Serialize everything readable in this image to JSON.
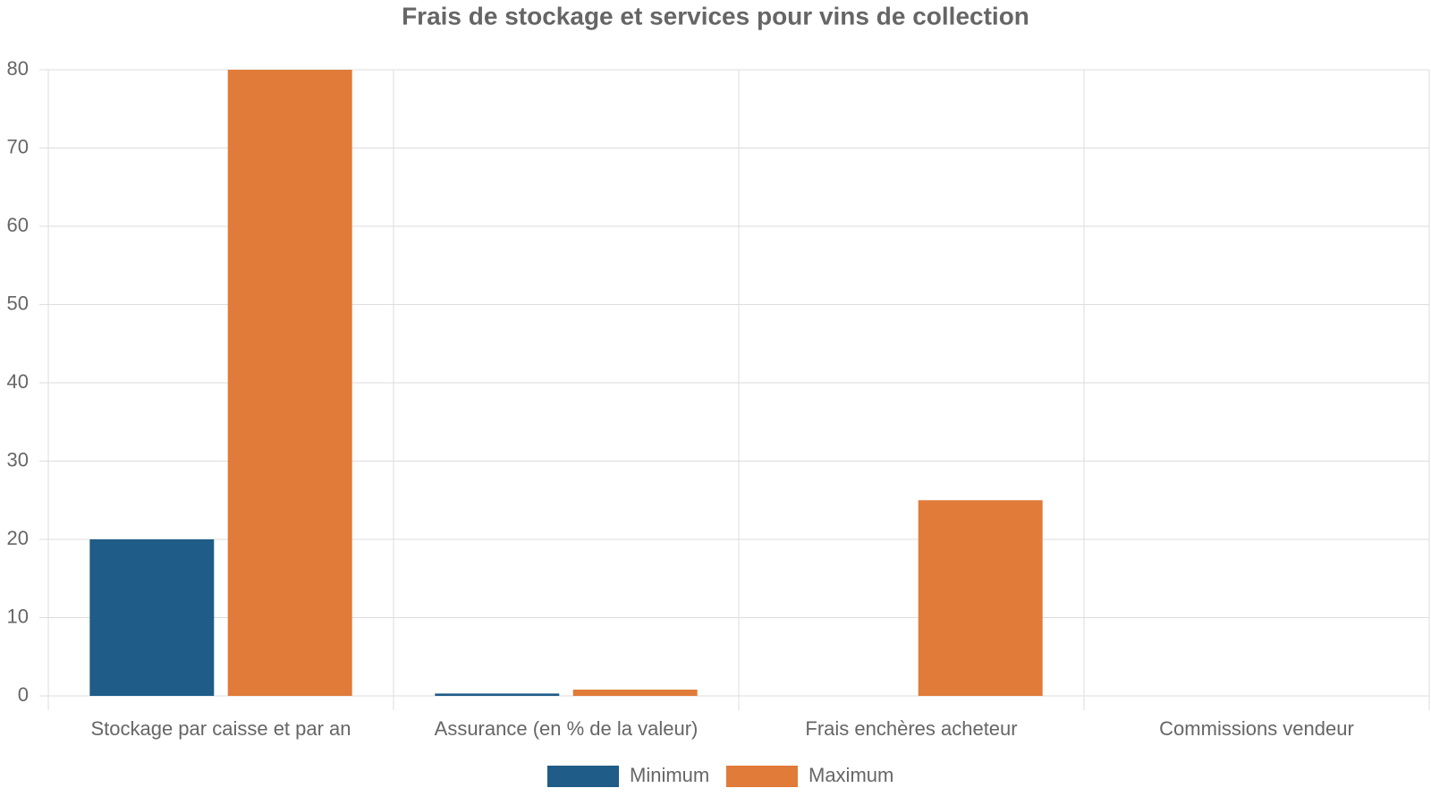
{
  "chart_data": {
    "type": "bar",
    "title": "Frais de stockage et services pour vins de collection",
    "categories": [
      "Stockage par caisse et par an",
      "Assurance (en % de la valeur)",
      "Frais enchères acheteur",
      "Commissions vendeur"
    ],
    "series": [
      {
        "name": "Minimum",
        "color": "#1f5c87",
        "values": [
          20,
          0.3,
          null,
          null
        ]
      },
      {
        "name": "Maximum",
        "color": "#e07b39",
        "values": [
          80,
          0.8,
          25,
          null
        ]
      }
    ],
    "ylim": [
      0,
      80
    ],
    "yticks": [
      0,
      10,
      20,
      30,
      40,
      50,
      60,
      70,
      80
    ],
    "grid": true,
    "legend": "bottom"
  }
}
